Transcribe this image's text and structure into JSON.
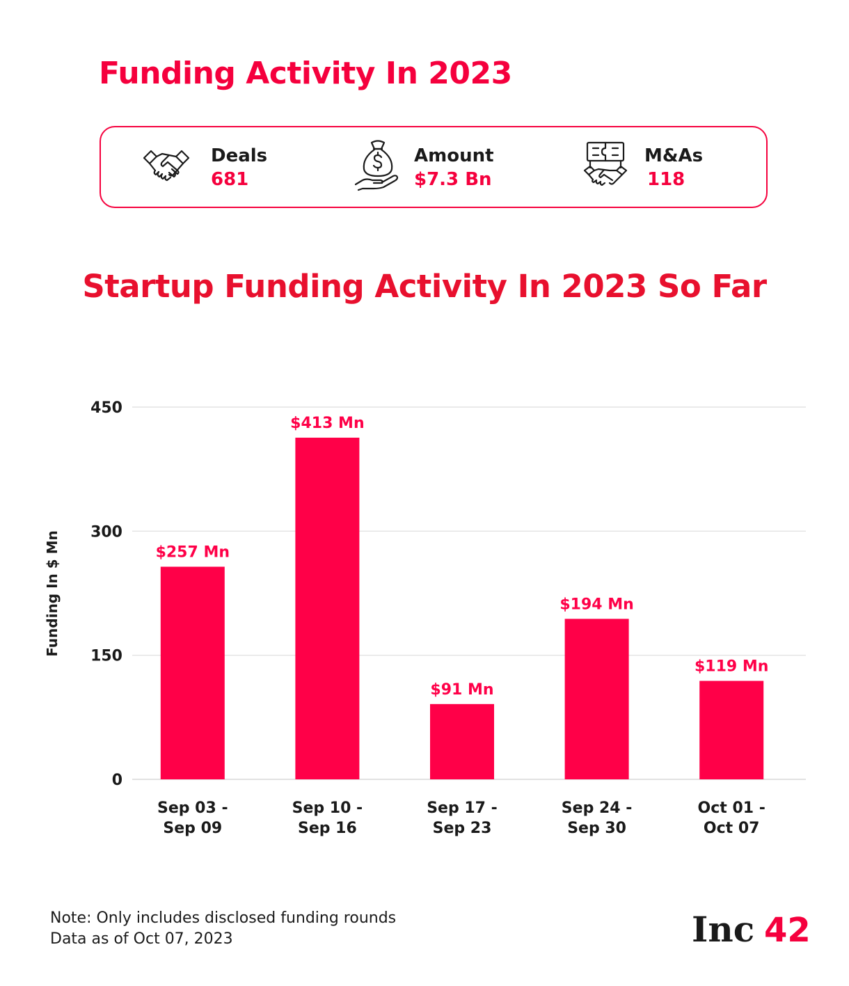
{
  "header": {
    "title": "Funding Activity In 2023"
  },
  "stats": [
    {
      "icon": "handshake-icon",
      "label": "Deals",
      "value": "681"
    },
    {
      "icon": "money-bag-hand-icon",
      "label": "Amount",
      "value": "$7.3 Bn"
    },
    {
      "icon": "puzzle-handshake-icon",
      "label": "M&As",
      "value": "118"
    }
  ],
  "colors": {
    "accent": "#f5003d",
    "title_red": "#e8102e",
    "text": "#1a1a1a",
    "grid": "#dddddd"
  },
  "chart_data": {
    "type": "bar",
    "title": "Startup Funding Activity In 2023 So Far",
    "ylabel": "Funding In $ Mn",
    "xlabel": "",
    "categories": [
      [
        "Sep 03 -",
        "Sep 09"
      ],
      [
        "Sep 10 -",
        "Sep 16"
      ],
      [
        "Sep 17 -",
        "Sep 23"
      ],
      [
        "Sep 24 -",
        "Sep 30"
      ],
      [
        "Oct 01 -",
        "Oct 07"
      ]
    ],
    "values": [
      257,
      413,
      91,
      194,
      119
    ],
    "data_labels": [
      "$257 Mn",
      "$413 Mn",
      "$91 Mn",
      "$194 Mn",
      "$119 Mn"
    ],
    "ylim": [
      0,
      450
    ],
    "yticks": [
      0,
      150,
      300,
      450
    ],
    "grid": true,
    "bar_color": "#ff0048"
  },
  "footer": {
    "note": "Note: Only includes disclosed funding rounds",
    "data_date": "Data as of Oct 07, 2023"
  },
  "logo": {
    "text": "Inc",
    "number": "42"
  }
}
